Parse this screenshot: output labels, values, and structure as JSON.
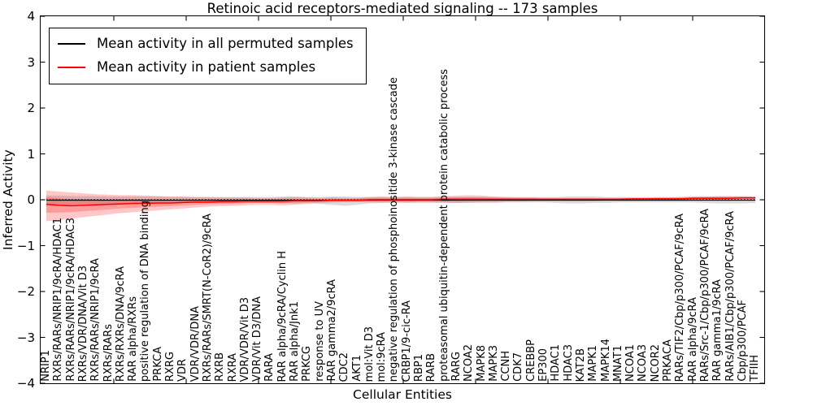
{
  "figure": {
    "title": "Retinoic acid receptors-mediated signaling -- 173 samples",
    "xlabel": "Cellular Entities",
    "ylabel": "Inferred Activity",
    "ytick_labels": [
      "4",
      "3",
      "2",
      "1",
      "0",
      "−1",
      "−2",
      "−3",
      "−4"
    ],
    "background": "#ffffff",
    "axis_color": "#000000"
  },
  "legend": {
    "items": [
      {
        "label": "Mean activity in all permuted samples",
        "color": "#000000"
      },
      {
        "label": "Mean activity in patient samples",
        "color": "#ff0000"
      }
    ]
  },
  "chart_data": {
    "type": "line",
    "title": "Retinoic acid receptors-mediated signaling -- 173 samples",
    "xlabel": "Cellular Entities",
    "ylabel": "Inferred Activity",
    "ylim": [
      -4,
      4
    ],
    "grid": false,
    "legend_position": "upper left",
    "zero_line": {
      "y": 0,
      "style": "dotted",
      "color": "#000000"
    },
    "categories": [
      "NRIP1",
      "RXRs/RARs/NRIP1/9cRA/HDAC1",
      "RXRs/RARs/NRIP1/9cRA/HDAC3",
      "RXRs/VDR/DNA/Vit D3",
      "RXRs/RARs/NRIP1/9cRA",
      "RXRs/RARs",
      "RXRs/RXRs/DNA/9cRA",
      "RAR alpha/RXRs",
      "positive regulation of DNA binding",
      "PRKCA",
      "RXRG",
      "VDR",
      "VDR/VDR/DNA",
      "RXRs/RARs/SMRT(N-CoR2)/9cRA",
      "RXRB",
      "RXRA",
      "VDR/VDR/Vit D3",
      "VDR/Vit D3/DNA",
      "RARA",
      "RAR alpha/9cRA/Cyclin H",
      "RAR alpha/Jnk1",
      "PRKCG",
      "response to UV",
      "RAR gamma2/9cRA",
      "CDC2",
      "AKT1",
      "mol:Vit D3",
      "mol:9cRA",
      "negative regulation of phosphoinositide 3-kinase cascade",
      "CRBP1/9-cic-RA",
      "RBP1",
      "RARB",
      "proteasomal ubiquitin-dependent protein catabolic process",
      "RARG",
      "NCOA2",
      "MAPK8",
      "MAPK3",
      "CCNH",
      "CDK7",
      "CREBBP",
      "EP300",
      "HDAC1",
      "HDAC3",
      "KAT2B",
      "MAPK1",
      "MAPK14",
      "MNAT1",
      "NCOA1",
      "NCOA3",
      "NCOR2",
      "PRKACA",
      "RARs/TIF2/Cbp/p300/PCAF/9cRA",
      "RAR alpha/9cRA",
      "RARs/Src-1/Cbp/p300/PCAF/9cRA",
      "RAR gamma1/9cRA",
      "RARs/AIB1/Cbp/p300/PCAF/9cRA",
      "Cbp/p300/PCAF",
      "TFIIH"
    ],
    "series": [
      {
        "name": "Mean activity in all permuted samples",
        "color": "#000000",
        "band_color": "rgba(0,0,0,0.14)",
        "values_constant": -0.01,
        "band_hi": [
          0.09,
          0.09,
          0.08,
          0.08,
          0.08,
          0.07,
          0.07,
          0.07,
          0.07,
          0.07,
          0.06,
          0.06,
          0.06,
          0.06,
          0.06,
          0.06,
          0.06,
          0.06,
          0.06,
          0.07,
          0.07,
          0.06,
          0.06,
          0.07,
          0.07,
          0.06,
          0.06,
          0.06,
          0.06,
          0.06,
          0.06,
          0.06,
          0.06,
          0.06,
          0.06,
          0.06,
          0.06,
          0.06,
          0.06,
          0.06,
          0.06,
          0.06,
          0.07,
          0.07,
          0.07,
          0.06,
          0.06,
          0.06,
          0.06,
          0.06,
          0.06,
          0.06,
          0.06,
          0.07,
          0.07,
          0.07,
          0.07,
          0.07
        ],
        "band_lo": [
          -0.12,
          -0.12,
          -0.11,
          -0.1,
          -0.1,
          -0.09,
          -0.09,
          -0.08,
          -0.08,
          -0.08,
          -0.07,
          -0.07,
          -0.07,
          -0.07,
          -0.07,
          -0.07,
          -0.07,
          -0.07,
          -0.07,
          -0.08,
          -0.08,
          -0.07,
          -0.09,
          -0.11,
          -0.13,
          -0.11,
          -0.08,
          -0.07,
          -0.07,
          -0.07,
          -0.07,
          -0.07,
          -0.07,
          -0.07,
          -0.07,
          -0.07,
          -0.07,
          -0.06,
          -0.06,
          -0.06,
          -0.06,
          -0.07,
          -0.08,
          -0.08,
          -0.07,
          -0.07,
          -0.06,
          -0.06,
          -0.06,
          -0.06,
          -0.06,
          -0.06,
          -0.06,
          -0.07,
          -0.08,
          -0.08,
          -0.08,
          -0.07
        ]
      },
      {
        "name": "Mean activity in patient samples",
        "color": "#ff0000",
        "band_color": "rgba(255,0,0,0.22)",
        "values": [
          -0.1,
          -0.12,
          -0.13,
          -0.12,
          -0.11,
          -0.1,
          -0.09,
          -0.08,
          -0.08,
          -0.07,
          -0.07,
          -0.06,
          -0.05,
          -0.05,
          -0.04,
          -0.04,
          -0.03,
          -0.03,
          -0.03,
          -0.03,
          -0.02,
          -0.02,
          -0.02,
          -0.01,
          -0.01,
          -0.01,
          0.0,
          0.0,
          0.0,
          0.0,
          0.0,
          0.0,
          0.01,
          0.01,
          0.01,
          0.01,
          0.01,
          0.01,
          0.01,
          0.01,
          0.01,
          0.01,
          0.01,
          0.01,
          0.01,
          0.01,
          0.01,
          0.02,
          0.02,
          0.02,
          0.02,
          0.02,
          0.03,
          0.03,
          0.03,
          0.03,
          0.04,
          0.04
        ],
        "band_hi": [
          0.2,
          0.18,
          0.16,
          0.14,
          0.12,
          0.11,
          0.1,
          0.1,
          0.09,
          0.08,
          0.07,
          0.07,
          0.06,
          0.06,
          0.05,
          0.05,
          0.05,
          0.04,
          0.04,
          0.05,
          0.06,
          0.05,
          0.04,
          0.05,
          0.04,
          0.04,
          0.06,
          0.07,
          0.06,
          0.07,
          0.06,
          0.06,
          0.08,
          0.09,
          0.1,
          0.09,
          0.07,
          0.06,
          0.05,
          0.05,
          0.04,
          0.04,
          0.04,
          0.04,
          0.04,
          0.04,
          0.04,
          0.04,
          0.04,
          0.05,
          0.05,
          0.06,
          0.07,
          0.07,
          0.08,
          0.08,
          0.08,
          0.07
        ],
        "band_lo": [
          -0.47,
          -0.44,
          -0.41,
          -0.38,
          -0.35,
          -0.32,
          -0.29,
          -0.27,
          -0.25,
          -0.23,
          -0.21,
          -0.19,
          -0.17,
          -0.15,
          -0.14,
          -0.13,
          -0.12,
          -0.11,
          -0.11,
          -0.12,
          -0.11,
          -0.09,
          -0.07,
          -0.06,
          -0.05,
          -0.05,
          -0.06,
          -0.06,
          -0.05,
          -0.06,
          -0.05,
          -0.05,
          -0.06,
          -0.07,
          -0.06,
          -0.05,
          -0.05,
          -0.04,
          -0.04,
          -0.03,
          -0.03,
          -0.03,
          -0.03,
          -0.03,
          -0.03,
          -0.02,
          -0.02,
          -0.02,
          -0.02,
          -0.02,
          -0.02,
          -0.01,
          -0.01,
          0.0,
          0.0,
          0.01,
          0.01,
          0.01
        ]
      }
    ]
  }
}
